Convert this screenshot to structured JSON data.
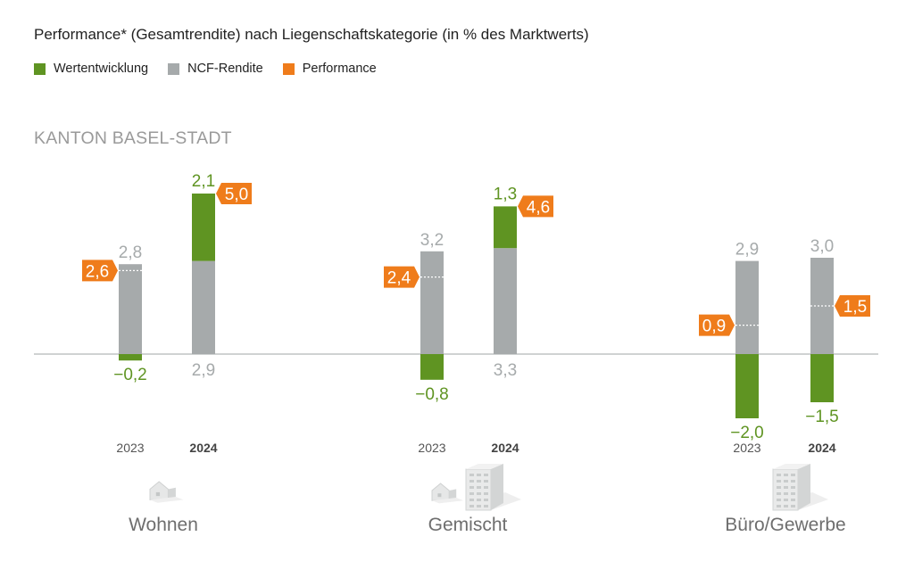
{
  "title": "Performance* (Gesamtrendite) nach Liegenschaftskategorie (in % des Marktwerts)",
  "subtitle": "KANTON BASEL-STADT",
  "colors": {
    "wertentwicklung": "#5f9422",
    "ncf": "#a6aaab",
    "performance": "#ef7c1b",
    "baseline": "#bfc3c4"
  },
  "legend": [
    {
      "label": "Wertentwicklung",
      "color": "#5f9422"
    },
    {
      "label": "NCF-Rendite",
      "color": "#a6aaab"
    },
    {
      "label": "Performance",
      "color": "#ef7c1b"
    }
  ],
  "chart_data": {
    "type": "bar",
    "stacked": true,
    "series_names": [
      "Wertentwicklung",
      "NCF-Rendite",
      "Performance"
    ],
    "groups": [
      {
        "category": "Wohnen",
        "icon": "house-icon",
        "bars": [
          {
            "year": "2023",
            "bold": false,
            "wertentwicklung": -0.2,
            "ncf": 2.8,
            "performance": 2.6,
            "wert_label": "−0,2",
            "ncf_label": "2,8",
            "perf_label": "2,6"
          },
          {
            "year": "2024",
            "bold": true,
            "wertentwicklung": 2.1,
            "ncf": 2.9,
            "performance": 5.0,
            "wert_label": "2,1",
            "ncf_label": "2,9",
            "perf_label": "5,0"
          }
        ]
      },
      {
        "category": "Gemischt",
        "icon": "house-and-building-icon",
        "bars": [
          {
            "year": "2023",
            "bold": false,
            "wertentwicklung": -0.8,
            "ncf": 3.2,
            "performance": 2.4,
            "wert_label": "−0,8",
            "ncf_label": "3,2",
            "perf_label": "2,4"
          },
          {
            "year": "2024",
            "bold": true,
            "wertentwicklung": 1.3,
            "ncf": 3.3,
            "performance": 4.6,
            "wert_label": "1,3",
            "ncf_label": "3,3",
            "perf_label": "4,6"
          }
        ]
      },
      {
        "category": "Büro/Gewerbe",
        "icon": "office-building-icon",
        "bars": [
          {
            "year": "2023",
            "bold": false,
            "wertentwicklung": -2.0,
            "ncf": 2.9,
            "performance": 0.9,
            "wert_label": "−2,0",
            "ncf_label": "2,9",
            "perf_label": "0,9"
          },
          {
            "year": "2024",
            "bold": true,
            "wertentwicklung": -1.5,
            "ncf": 3.0,
            "performance": 1.5,
            "wert_label": "−1,5",
            "ncf_label": "3,0",
            "perf_label": "1,5"
          }
        ]
      }
    ]
  }
}
